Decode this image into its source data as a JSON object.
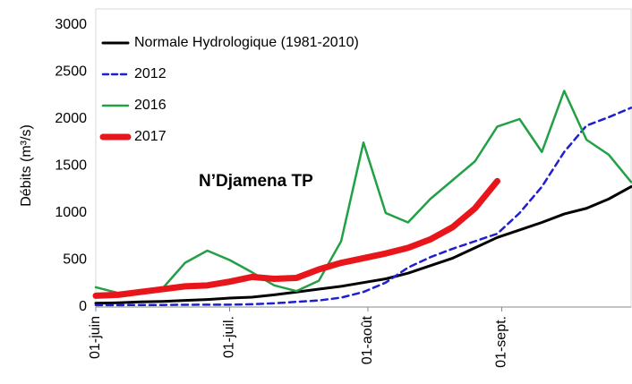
{
  "chart_data": {
    "type": "line",
    "y_label": "Débits (m³/s)",
    "annotation": "N’Djamena TP",
    "x": [
      0,
      5,
      10,
      15,
      20,
      25,
      30,
      35,
      40,
      45,
      50,
      55,
      60,
      65,
      70,
      75,
      80,
      85,
      90,
      95,
      100,
      105,
      110,
      115,
      120
    ],
    "xlim": [
      0,
      120
    ],
    "xticks": [
      {
        "value": 0,
        "label": "01-juin"
      },
      {
        "value": 30,
        "label": "01-juil."
      },
      {
        "value": 61,
        "label": "01-août"
      },
      {
        "value": 91,
        "label": "01-sept."
      }
    ],
    "ylim": [
      0,
      3000
    ],
    "yticks": [
      0,
      500,
      1000,
      1500,
      2000,
      2500,
      3000
    ],
    "grid": false,
    "legend": "upper left",
    "series": [
      {
        "name": "Normale Hydrologique (1981-2010)",
        "color": "#000000",
        "dash": false,
        "width": 3,
        "values": [
          40,
          45,
          55,
          60,
          70,
          80,
          95,
          105,
          130,
          160,
          190,
          220,
          260,
          300,
          360,
          440,
          520,
          630,
          740,
          820,
          900,
          990,
          1050,
          1150,
          1280
        ]
      },
      {
        "name": "2012",
        "color": "#1f1fd0",
        "dash": true,
        "width": 2.5,
        "values": [
          20,
          20,
          22,
          22,
          24,
          25,
          25,
          30,
          40,
          55,
          70,
          100,
          160,
          260,
          420,
          530,
          620,
          700,
          780,
          1000,
          1280,
          1650,
          1930,
          2020,
          2120
        ]
      },
      {
        "name": "2016",
        "color": "#22a046",
        "dash": false,
        "width": 2.5,
        "values": [
          210,
          150,
          170,
          200,
          470,
          600,
          500,
          370,
          230,
          170,
          280,
          700,
          1750,
          1000,
          900,
          1150,
          1350,
          1550,
          1920,
          2000,
          1650,
          2300,
          1780,
          1620,
          1330
        ]
      },
      {
        "name": "2017",
        "color": "#e8161b",
        "dash": false,
        "width": 7,
        "values": [
          120,
          130,
          160,
          190,
          220,
          230,
          270,
          320,
          300,
          310,
          400,
          470,
          520,
          570,
          630,
          720,
          850,
          1050,
          1340,
          null,
          null,
          null,
          null,
          null,
          null
        ]
      }
    ]
  }
}
